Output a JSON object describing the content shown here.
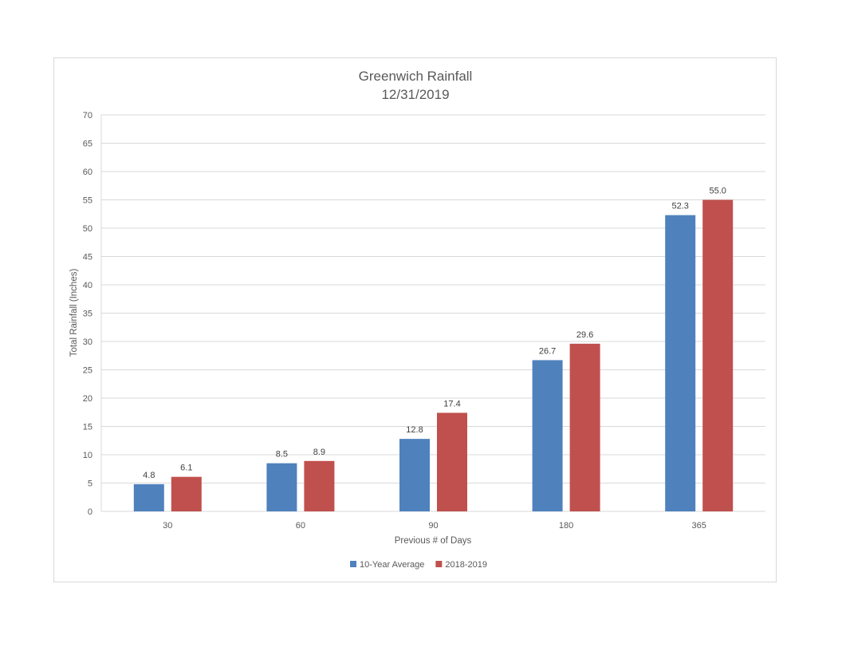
{
  "chart_data": {
    "type": "bar",
    "title": "Greenwich Rainfall",
    "subtitle": "12/31/2019",
    "xlabel": "Previous # of Days",
    "ylabel": "Total Rainfall (Inches)",
    "categories": [
      "30",
      "60",
      "90",
      "180",
      "365"
    ],
    "series": [
      {
        "name": "10-Year Average",
        "color": "#4f81bd",
        "values": [
          4.8,
          8.5,
          12.8,
          26.7,
          52.3
        ]
      },
      {
        "name": "2018-2019",
        "color": "#c0504d",
        "values": [
          6.1,
          8.9,
          17.4,
          29.6,
          55.0
        ]
      }
    ],
    "ylim": [
      0,
      70
    ],
    "yticks": [
      0,
      5,
      10,
      15,
      20,
      25,
      30,
      35,
      40,
      45,
      50,
      55,
      60,
      65,
      70
    ],
    "grid": true,
    "legend_position": "bottom",
    "data_label_format": "0.0"
  }
}
